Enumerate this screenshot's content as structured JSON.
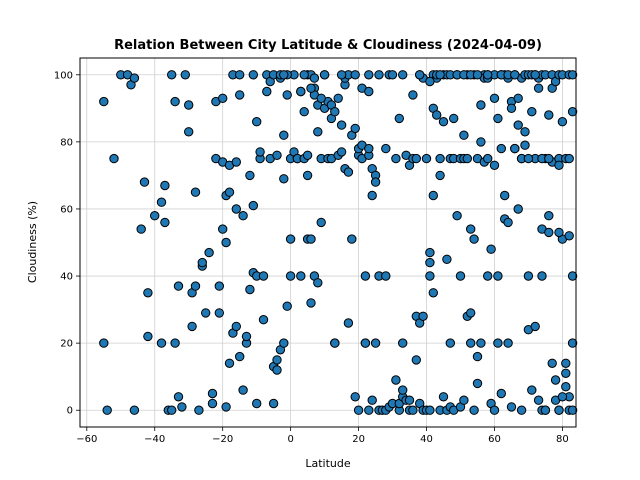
{
  "chart_data": {
    "type": "scatter",
    "title": "Relation Between City Latitude & Cloudiness (2024-04-09)",
    "xlabel": "Latitude",
    "ylabel": "Cloudiness (%)",
    "xlim": [
      -62,
      84
    ],
    "ylim": [
      -5,
      105
    ],
    "xticks": [
      -60,
      -40,
      -20,
      0,
      20,
      40,
      60,
      80
    ],
    "yticks": [
      0,
      20,
      40,
      60,
      80,
      100
    ],
    "grid": true,
    "marker_color": "#1f77b4",
    "marker_edge": "#000000",
    "points": [
      [
        -55,
        92
      ],
      [
        -55,
        20
      ],
      [
        -54,
        0
      ],
      [
        -52,
        75
      ],
      [
        -50,
        100
      ],
      [
        -48,
        100
      ],
      [
        -47,
        97
      ],
      [
        -46,
        0
      ],
      [
        -46,
        99
      ],
      [
        -44,
        54
      ],
      [
        -43,
        68
      ],
      [
        -42,
        22
      ],
      [
        -42,
        35
      ],
      [
        -40,
        58
      ],
      [
        -38,
        62
      ],
      [
        -38,
        20
      ],
      [
        -37,
        56
      ],
      [
        -37,
        67
      ],
      [
        -36,
        0
      ],
      [
        -35,
        100
      ],
      [
        -35,
        0
      ],
      [
        -34,
        92
      ],
      [
        -34,
        20
      ],
      [
        -33,
        37
      ],
      [
        -33,
        4
      ],
      [
        -32,
        1
      ],
      [
        -31,
        100
      ],
      [
        -30,
        91
      ],
      [
        -30,
        83
      ],
      [
        -29,
        25
      ],
      [
        -29,
        35
      ],
      [
        -28,
        65
      ],
      [
        -28,
        37
      ],
      [
        -27,
        0
      ],
      [
        -26,
        43
      ],
      [
        -26,
        44
      ],
      [
        -25,
        29
      ],
      [
        -24,
        47
      ],
      [
        -23,
        5
      ],
      [
        -23,
        2
      ],
      [
        -22,
        75
      ],
      [
        -22,
        92
      ],
      [
        -21,
        37
      ],
      [
        -21,
        29
      ],
      [
        -20,
        74
      ],
      [
        -20,
        93
      ],
      [
        -20,
        54
      ],
      [
        -19,
        1
      ],
      [
        -19,
        64
      ],
      [
        -19,
        50
      ],
      [
        -18,
        65
      ],
      [
        -18,
        73
      ],
      [
        -18,
        14
      ],
      [
        -17,
        100
      ],
      [
        -17,
        23
      ],
      [
        -16,
        25
      ],
      [
        -16,
        74
      ],
      [
        -16,
        60
      ],
      [
        -15,
        100
      ],
      [
        -15,
        94
      ],
      [
        -15,
        16
      ],
      [
        -14,
        58
      ],
      [
        -14,
        6
      ],
      [
        -13,
        20
      ],
      [
        -13,
        22
      ],
      [
        -12,
        70
      ],
      [
        -12,
        36
      ],
      [
        -11,
        41
      ],
      [
        -11,
        61
      ],
      [
        -11,
        100
      ],
      [
        -10,
        86
      ],
      [
        -10,
        40
      ],
      [
        -10,
        2
      ],
      [
        -9,
        75
      ],
      [
        -9,
        77
      ],
      [
        -8,
        27
      ],
      [
        -8,
        40
      ],
      [
        -7,
        95
      ],
      [
        -7,
        100
      ],
      [
        -6,
        75
      ],
      [
        -6,
        98
      ],
      [
        -5,
        100
      ],
      [
        -5,
        13
      ],
      [
        -5,
        2
      ],
      [
        -4,
        15
      ],
      [
        -4,
        12
      ],
      [
        -4,
        76
      ],
      [
        -3,
        99
      ],
      [
        -3,
        100
      ],
      [
        -3,
        18
      ],
      [
        -2,
        20
      ],
      [
        -2,
        69
      ],
      [
        -2,
        82
      ],
      [
        -1,
        94
      ],
      [
        -1,
        31
      ],
      [
        0,
        40
      ],
      [
        0,
        75
      ],
      [
        1,
        77
      ],
      [
        1,
        100
      ],
      [
        2,
        75
      ],
      [
        2,
        75
      ],
      [
        3,
        95
      ],
      [
        3,
        95
      ],
      [
        3,
        40
      ],
      [
        4,
        89
      ],
      [
        4,
        75
      ],
      [
        5,
        76
      ],
      [
        5,
        51
      ],
      [
        5,
        70
      ],
      [
        5,
        100
      ],
      [
        6,
        100
      ],
      [
        6,
        51
      ],
      [
        6,
        32
      ],
      [
        7,
        99
      ],
      [
        7,
        96
      ],
      [
        7,
        94
      ],
      [
        7,
        40
      ],
      [
        8,
        91
      ],
      [
        8,
        83
      ],
      [
        8,
        38
      ],
      [
        9,
        75
      ],
      [
        9,
        56
      ],
      [
        10,
        90
      ],
      [
        10,
        100
      ],
      [
        10,
        100
      ],
      [
        11,
        92
      ],
      [
        11,
        75
      ],
      [
        12,
        75
      ],
      [
        12,
        91
      ],
      [
        12,
        87
      ],
      [
        13,
        20
      ],
      [
        13,
        20
      ],
      [
        13,
        89
      ],
      [
        14,
        93
      ],
      [
        14,
        76
      ],
      [
        15,
        77
      ],
      [
        15,
        85
      ],
      [
        16,
        72
      ],
      [
        16,
        97
      ],
      [
        16,
        99
      ],
      [
        17,
        71
      ],
      [
        17,
        100
      ],
      [
        17,
        26
      ],
      [
        18,
        51
      ],
      [
        18,
        82
      ],
      [
        19,
        84
      ],
      [
        19,
        100
      ],
      [
        19,
        4
      ],
      [
        20,
        0
      ],
      [
        20,
        76
      ],
      [
        20,
        78
      ],
      [
        21,
        79
      ],
      [
        21,
        75
      ],
      [
        21,
        96
      ],
      [
        22,
        40
      ],
      [
        22,
        20
      ],
      [
        22,
        20
      ],
      [
        23,
        100
      ],
      [
        23,
        95
      ],
      [
        23,
        0
      ],
      [
        23,
        76
      ],
      [
        23,
        78
      ],
      [
        24,
        72
      ],
      [
        24,
        64
      ],
      [
        24,
        3
      ],
      [
        25,
        70
      ],
      [
        25,
        20
      ],
      [
        25,
        68
      ],
      [
        26,
        40
      ],
      [
        26,
        0
      ],
      [
        27,
        0
      ],
      [
        28,
        40
      ],
      [
        28,
        0
      ],
      [
        28,
        78
      ],
      [
        29,
        100
      ],
      [
        29,
        1
      ],
      [
        30,
        100
      ],
      [
        30,
        2
      ],
      [
        31,
        9
      ],
      [
        31,
        75
      ],
      [
        32,
        0
      ],
      [
        32,
        87
      ],
      [
        32,
        2
      ],
      [
        33,
        20
      ],
      [
        33,
        4
      ],
      [
        33,
        6
      ],
      [
        34,
        76
      ],
      [
        34,
        3
      ],
      [
        35,
        73
      ],
      [
        35,
        0
      ],
      [
        35,
        3
      ],
      [
        36,
        75
      ],
      [
        36,
        0
      ],
      [
        37,
        15
      ],
      [
        37,
        28
      ],
      [
        37,
        75
      ],
      [
        38,
        100
      ],
      [
        38,
        2
      ],
      [
        38,
        26
      ],
      [
        39,
        99
      ],
      [
        39,
        28
      ],
      [
        39,
        0
      ],
      [
        40,
        75
      ],
      [
        40,
        0
      ],
      [
        41,
        0
      ],
      [
        41,
        47
      ],
      [
        41,
        44
      ],
      [
        41,
        40
      ],
      [
        42,
        35
      ],
      [
        42,
        64
      ],
      [
        42,
        100
      ],
      [
        42,
        90
      ],
      [
        43,
        88
      ],
      [
        43,
        99
      ],
      [
        43,
        100
      ],
      [
        44,
        70
      ],
      [
        44,
        75
      ],
      [
        44,
        0
      ],
      [
        45,
        100
      ],
      [
        45,
        86
      ],
      [
        45,
        4
      ],
      [
        46,
        100
      ],
      [
        46,
        45
      ],
      [
        46,
        0
      ],
      [
        47,
        75
      ],
      [
        47,
        20
      ],
      [
        47,
        1
      ],
      [
        48,
        75
      ],
      [
        48,
        87
      ],
      [
        48,
        0
      ],
      [
        49,
        100
      ],
      [
        49,
        58
      ],
      [
        50,
        75
      ],
      [
        50,
        40
      ],
      [
        50,
        1
      ],
      [
        51,
        82
      ],
      [
        51,
        3
      ],
      [
        51,
        75
      ],
      [
        52,
        100
      ],
      [
        52,
        75
      ],
      [
        52,
        28
      ],
      [
        53,
        20
      ],
      [
        53,
        29
      ],
      [
        53,
        54
      ],
      [
        54,
        100
      ],
      [
        54,
        0
      ],
      [
        54,
        51
      ],
      [
        55,
        75
      ],
      [
        55,
        8
      ],
      [
        55,
        16
      ],
      [
        56,
        91
      ],
      [
        56,
        20
      ],
      [
        56,
        80
      ],
      [
        57,
        100
      ],
      [
        57,
        74
      ],
      [
        57,
        99
      ],
      [
        58,
        99
      ],
      [
        58,
        75
      ],
      [
        58,
        100
      ],
      [
        58,
        40
      ],
      [
        59,
        2
      ],
      [
        59,
        48
      ],
      [
        60,
        100
      ],
      [
        60,
        0
      ],
      [
        60,
        73
      ],
      [
        61,
        40
      ],
      [
        61,
        87
      ],
      [
        61,
        20
      ],
      [
        62,
        5
      ],
      [
        62,
        100
      ],
      [
        62,
        78
      ],
      [
        63,
        57
      ],
      [
        63,
        100
      ],
      [
        63,
        64
      ],
      [
        64,
        99
      ],
      [
        64,
        20
      ],
      [
        64,
        56
      ],
      [
        65,
        92
      ],
      [
        65,
        1
      ],
      [
        65,
        90
      ],
      [
        66,
        100
      ],
      [
        66,
        78
      ],
      [
        66,
        78
      ],
      [
        67,
        85
      ],
      [
        67,
        93
      ],
      [
        67,
        60
      ],
      [
        68,
        75
      ],
      [
        68,
        0
      ],
      [
        68,
        99
      ],
      [
        69,
        100
      ],
      [
        69,
        79
      ],
      [
        69,
        83
      ],
      [
        70,
        100
      ],
      [
        70,
        40
      ],
      [
        70,
        24
      ],
      [
        71,
        100
      ],
      [
        71,
        89
      ],
      [
        71,
        6
      ],
      [
        72,
        100
      ],
      [
        72,
        75
      ],
      [
        72,
        25
      ],
      [
        73,
        99
      ],
      [
        73,
        3
      ],
      [
        73,
        96
      ],
      [
        74,
        100
      ],
      [
        74,
        0
      ],
      [
        74,
        40
      ],
      [
        74,
        54
      ],
      [
        75,
        100
      ],
      [
        75,
        75
      ],
      [
        75,
        0
      ],
      [
        75,
        0
      ],
      [
        76,
        58
      ],
      [
        76,
        53
      ],
      [
        76,
        88
      ],
      [
        77,
        100
      ],
      [
        77,
        96
      ],
      [
        77,
        74
      ],
      [
        77,
        14
      ],
      [
        78,
        98
      ],
      [
        78,
        9
      ],
      [
        78,
        3
      ],
      [
        79,
        100
      ],
      [
        79,
        75
      ],
      [
        79,
        73
      ],
      [
        79,
        0
      ],
      [
        80,
        100
      ],
      [
        80,
        86
      ],
      [
        80,
        51
      ],
      [
        81,
        14
      ],
      [
        81,
        11
      ],
      [
        81,
        75
      ],
      [
        82,
        100
      ],
      [
        82,
        75
      ],
      [
        82,
        0
      ],
      [
        82,
        4
      ],
      [
        83,
        100
      ],
      [
        83,
        89
      ],
      [
        83,
        40
      ],
      [
        83,
        0
      ],
      [
        79,
        0
      ],
      [
        0,
        51
      ],
      [
        -1,
        100
      ],
      [
        -2,
        100
      ],
      [
        4,
        100
      ],
      [
        6,
        96
      ],
      [
        9,
        93
      ],
      [
        15,
        100
      ],
      [
        26,
        100
      ],
      [
        33,
        100
      ],
      [
        36,
        94
      ],
      [
        38,
        100
      ],
      [
        41,
        98
      ],
      [
        44,
        100
      ],
      [
        47,
        100
      ],
      [
        49,
        100
      ],
      [
        51,
        100
      ],
      [
        53,
        100
      ],
      [
        55,
        100
      ],
      [
        58,
        100
      ],
      [
        60,
        93
      ],
      [
        62,
        100
      ],
      [
        64,
        100
      ],
      [
        66,
        100
      ],
      [
        68,
        75
      ],
      [
        70,
        75
      ],
      [
        72,
        100
      ],
      [
        74,
        75
      ],
      [
        76,
        75
      ],
      [
        79,
        53
      ],
      [
        80,
        4
      ],
      [
        81,
        7
      ],
      [
        82,
        52
      ],
      [
        83,
        20
      ]
    ]
  }
}
